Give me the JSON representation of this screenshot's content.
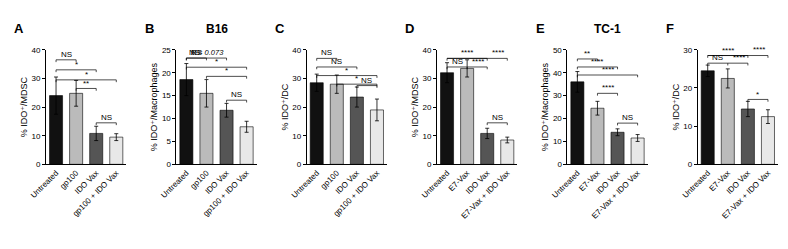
{
  "chart_data": [
    {
      "type": "bar",
      "panel": "A",
      "ylabel": "% IDO⁺/MDSC",
      "categories": [
        "Untreated",
        "gp100",
        "IDO Vax",
        "gp100 + IDO Vax"
      ],
      "values": [
        24.0,
        24.8,
        10.8,
        9.5
      ],
      "errors": [
        6.5,
        4.5,
        2.5,
        1.2
      ],
      "colors": [
        "#111111",
        "#bbbbbb",
        "#555555",
        "#e8e8e8"
      ],
      "ylim": [
        0,
        40
      ],
      "yticks": [
        0,
        10,
        20,
        30,
        40
      ],
      "grid": false,
      "brackets": [
        {
          "from": "Untreated",
          "to": "gp100",
          "y": 36.5,
          "label": "NS"
        },
        {
          "from": "Untreated",
          "to": "IDO Vax",
          "y": 33.0,
          "label": "*"
        },
        {
          "from": "Untreated",
          "to": "gp100 + IDO Vax",
          "y": 29.5,
          "label": "*"
        },
        {
          "from": "gp100",
          "to": "IDO Vax",
          "y": 26.5,
          "label": "**"
        },
        {
          "from": "IDO Vax",
          "to": "gp100 + IDO Vax",
          "y": 14.5,
          "label": "NS"
        }
      ]
    },
    {
      "type": "bar",
      "panel": "B",
      "title": "B16",
      "ylabel": "% IDO⁺/Macrophages",
      "categories": [
        "Untreated",
        "gp100",
        "IDO Vax",
        "gp100 + IDO Vax"
      ],
      "values": [
        18.5,
        15.5,
        11.8,
        8.2
      ],
      "errors": [
        3.5,
        3.0,
        1.5,
        1.2
      ],
      "colors": [
        "#111111",
        "#bbbbbb",
        "#555555",
        "#e8e8e8"
      ],
      "ylim": [
        0,
        25
      ],
      "yticks": [
        0,
        5,
        10,
        15,
        20,
        25
      ],
      "grid": false,
      "brackets": [
        {
          "from": "Untreated",
          "to": "gp100",
          "y": 23.2,
          "label": "NS"
        },
        {
          "from": "Untreated",
          "to": "IDO Vax",
          "y": 23.2,
          "label": "P = 0.073",
          "left_label": "NS"
        },
        {
          "from": "Untreated",
          "to": "gp100 + IDO Vax",
          "y": 21.2,
          "label": "*"
        },
        {
          "from": "gp100",
          "to": "gp100 + IDO Vax",
          "y": 19.2,
          "label": "*"
        },
        {
          "from": "IDO Vax",
          "to": "gp100 + IDO Vax",
          "y": 14.0,
          "label": "NS"
        }
      ]
    },
    {
      "type": "bar",
      "panel": "C",
      "ylabel": "% IDO⁺/DC",
      "categories": [
        "Untreated",
        "gp100",
        "IDO Vax",
        "gp100 + IDO Vax"
      ],
      "values": [
        28.5,
        28.0,
        23.5,
        19.0
      ],
      "errors": [
        3.0,
        3.2,
        3.5,
        3.8
      ],
      "colors": [
        "#111111",
        "#bbbbbb",
        "#555555",
        "#e8e8e8"
      ],
      "ylim": [
        0,
        40
      ],
      "yticks": [
        0,
        10,
        20,
        30,
        40
      ],
      "grid": false,
      "brackets": [
        {
          "from": "Untreated",
          "to": "gp100",
          "y": 37.0,
          "label": "NS"
        },
        {
          "from": "Untreated",
          "to": "IDO Vax",
          "y": 34.0,
          "label": "NS"
        },
        {
          "from": "Untreated",
          "to": "gp100 + IDO Vax",
          "y": 31.0,
          "label": "*"
        },
        {
          "from": "gp100",
          "to": "gp100 + IDO Vax",
          "y": 28.0,
          "label": "*"
        },
        {
          "from": "IDO Vax",
          "to": "gp100 + IDO Vax",
          "y": 27.5,
          "label": "NS"
        }
      ]
    },
    {
      "type": "bar",
      "panel": "D",
      "ylabel": "% IDO⁺/MDSC",
      "categories": [
        "Untreated",
        "E7-Vax",
        "IDO Vax",
        "E7-Vax + IDO Vax"
      ],
      "values": [
        32.0,
        33.5,
        10.8,
        8.5
      ],
      "errors": [
        3.5,
        3.0,
        1.8,
        1.0
      ],
      "colors": [
        "#111111",
        "#bbbbbb",
        "#555555",
        "#e8e8e8"
      ],
      "ylim": [
        0,
        40
      ],
      "yticks": [
        0,
        10,
        20,
        30,
        40
      ],
      "grid": false,
      "brackets": [
        {
          "from": "Untreated",
          "to": "IDO Vax",
          "y": 37.0,
          "label": "****"
        },
        {
          "from": "Untreated",
          "to": "E7-Vax + IDO Vax",
          "y": 37.0,
          "label": "****",
          "right_only": true
        },
        {
          "from": "Untreated",
          "to": "E7-Vax",
          "y": 34.0,
          "label": "NS"
        },
        {
          "from": "E7-Vax",
          "to": "IDO Vax",
          "y": 34.0,
          "label": "****",
          "right_only": true
        },
        {
          "from": "IDO Vax",
          "to": "E7-Vax + IDO Vax",
          "y": 14.5,
          "label": "NS"
        }
      ]
    },
    {
      "type": "bar",
      "panel": "E",
      "title": "TC-1",
      "ylabel": "% IDO⁺/Macrophages",
      "categories": [
        "Untreated",
        "E7-Vax",
        "IDO Vax",
        "E7-Vax + IDO Vax"
      ],
      "values": [
        36.0,
        24.5,
        14.0,
        11.5
      ],
      "errors": [
        4.5,
        3.0,
        1.5,
        1.5
      ],
      "colors": [
        "#111111",
        "#bbbbbb",
        "#555555",
        "#e8e8e8"
      ],
      "ylim": [
        0,
        50
      ],
      "yticks": [
        0,
        10,
        20,
        30,
        40,
        50
      ],
      "grid": false,
      "brackets": [
        {
          "from": "Untreated",
          "to": "E7-Vax",
          "y": 46.0,
          "label": "**"
        },
        {
          "from": "Untreated",
          "to": "IDO Vax",
          "y": 42.5,
          "label": "****"
        },
        {
          "from": "Untreated",
          "to": "E7-Vax + IDO Vax",
          "y": 39.0,
          "label": "****"
        },
        {
          "from": "E7-Vax",
          "to": "IDO Vax",
          "y": 31.0,
          "label": "****"
        },
        {
          "from": "IDO Vax",
          "to": "E7-Vax + IDO Vax",
          "y": 18.0,
          "label": "NS"
        }
      ]
    },
    {
      "type": "bar",
      "panel": "F",
      "ylabel": "% IDO⁺/DC",
      "categories": [
        "Untreated",
        "E7-Vax",
        "IDO Vax",
        "E7-Vax + IDO Vax"
      ],
      "values": [
        24.5,
        22.5,
        14.5,
        12.5
      ],
      "errors": [
        1.5,
        2.5,
        2.0,
        1.8
      ],
      "colors": [
        "#111111",
        "#bbbbbb",
        "#555555",
        "#e8e8e8"
      ],
      "ylim": [
        0,
        30
      ],
      "yticks": [
        0,
        10,
        20,
        30
      ],
      "grid": false,
      "brackets": [
        {
          "from": "Untreated",
          "to": "IDO Vax",
          "y": 28.5,
          "label": "****"
        },
        {
          "from": "Untreated",
          "to": "E7-Vax + IDO Vax",
          "y": 28.5,
          "label": "****",
          "right_only": true
        },
        {
          "from": "Untreated",
          "to": "E7-Vax",
          "y": 26.5,
          "label": "NS"
        },
        {
          "from": "E7-Vax",
          "to": "IDO Vax",
          "y": 26.5,
          "label": "****",
          "right_only": true
        },
        {
          "from": "IDO Vax",
          "to": "E7-Vax + IDO Vax",
          "y": 17.0,
          "label": "*"
        }
      ]
    }
  ]
}
